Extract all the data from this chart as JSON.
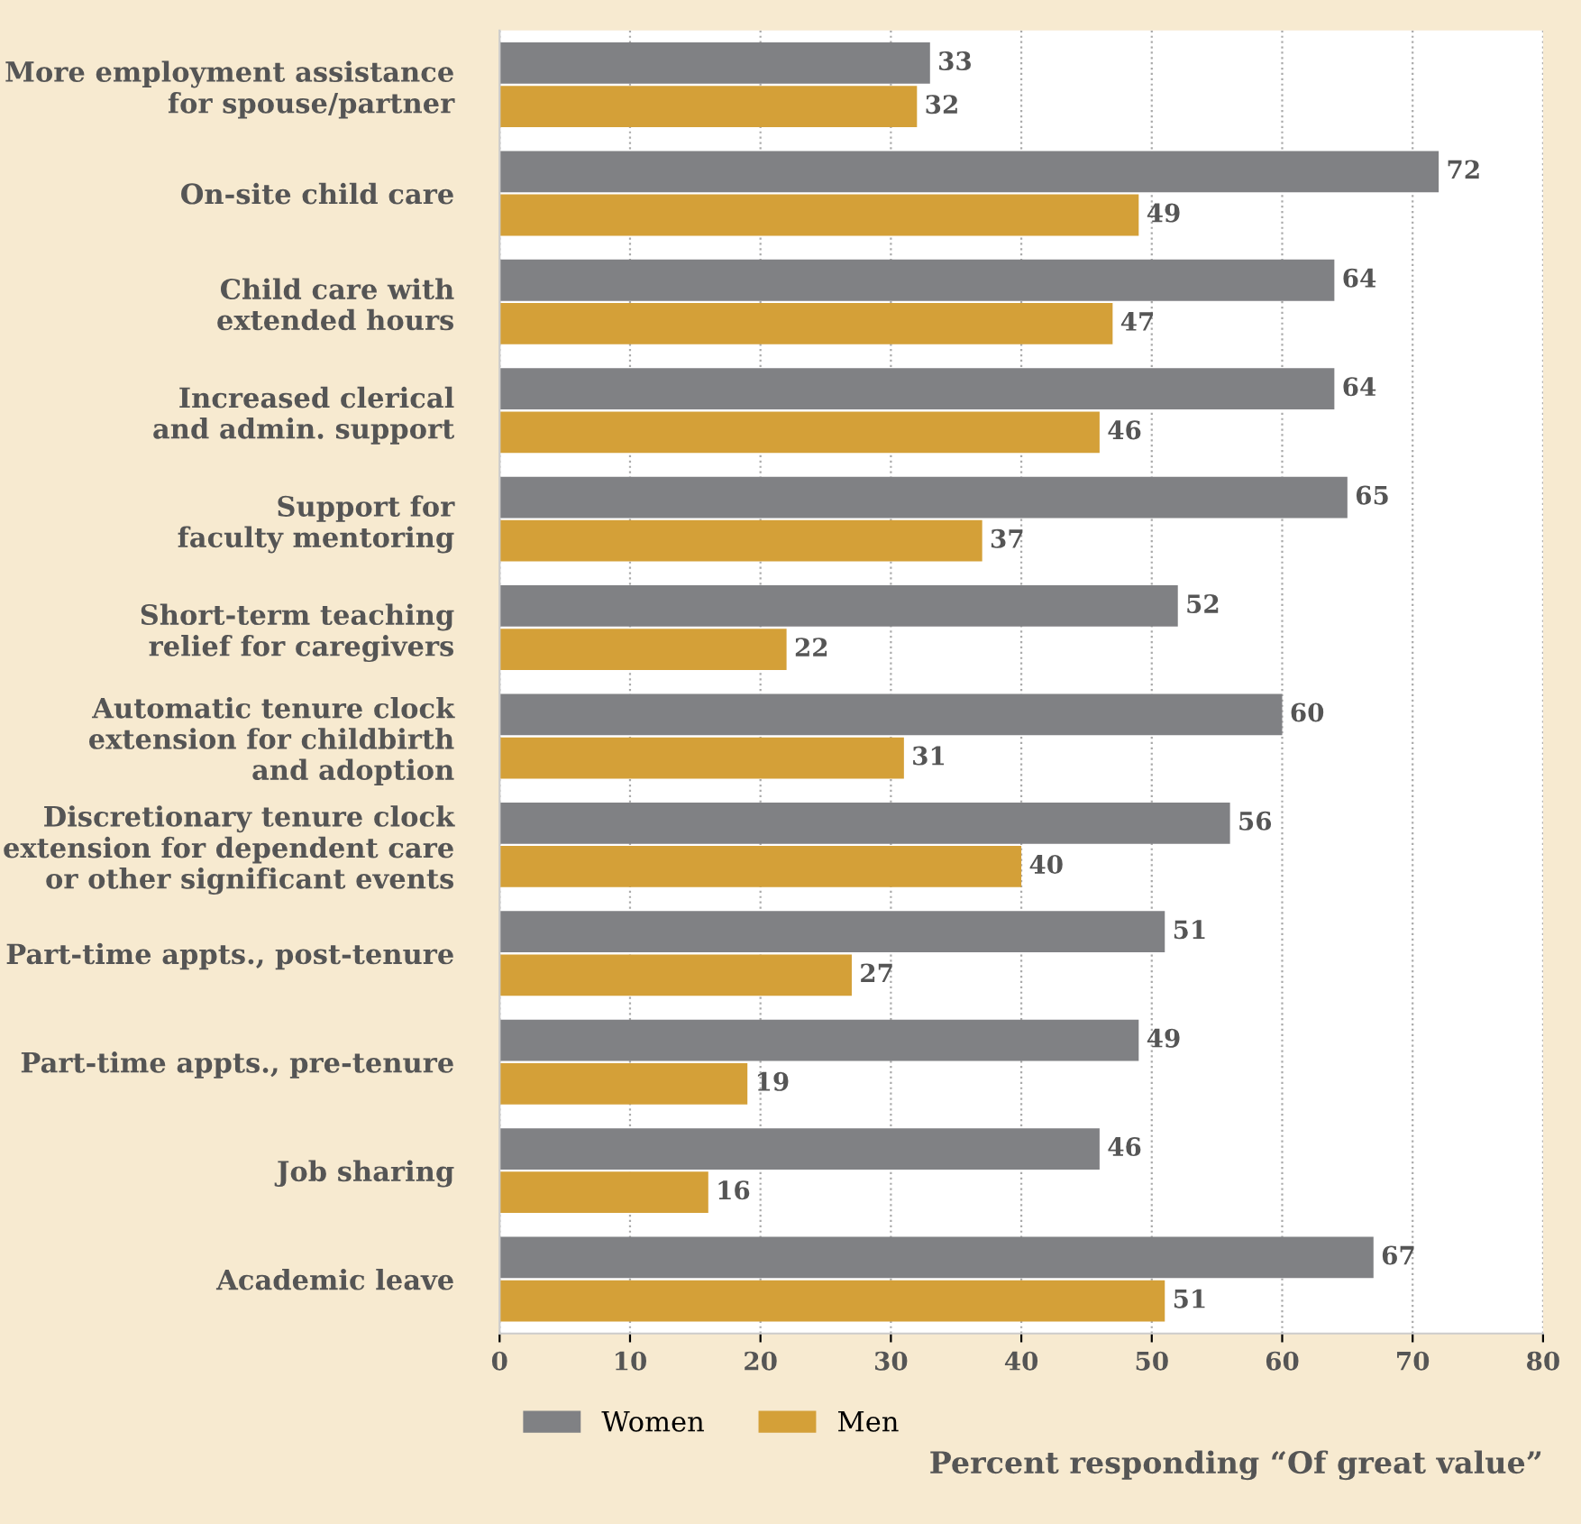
{
  "chart_data": {
    "type": "bar",
    "orientation": "horizontal",
    "xlabel": "Percent responding “Of great value”",
    "categories": [
      "More employment assistance\nfor spouse/partner",
      "On-site child care",
      "Child care with\nextended hours",
      "Increased clerical\nand admin. support",
      "Support for\nfaculty mentoring",
      "Short-term teaching\nrelief for caregivers",
      "Automatic tenure clock\nextension for childbirth\nand adoption",
      "Discretionary tenure clock\nextension for dependent care\nor other significant events",
      "Part-time appts., post-tenure",
      "Part-time appts., pre-tenure",
      "Job sharing",
      "Academic leave"
    ],
    "series": [
      {
        "name": "Women",
        "color": "#808184",
        "values": [
          33,
          72,
          64,
          64,
          65,
          52,
          60,
          56,
          51,
          49,
          46,
          67
        ]
      },
      {
        "name": "Men",
        "color": "#d4a038",
        "values": [
          32,
          49,
          47,
          46,
          37,
          22,
          31,
          40,
          27,
          19,
          16,
          51
        ]
      }
    ],
    "xlim": [
      0,
      80
    ],
    "xticks": [
      0,
      10,
      20,
      30,
      40,
      50,
      60,
      70,
      80
    ],
    "grid": "x",
    "legend": "bottom left",
    "data_labels": true
  }
}
